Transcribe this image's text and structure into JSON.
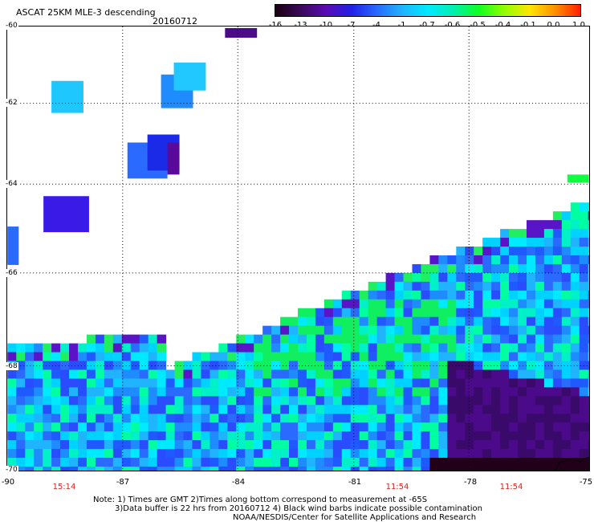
{
  "header": {
    "title": "ASCAT 25KM MLE-3 descending",
    "date": "20160712"
  },
  "colorbar": {
    "labels": [
      "-16",
      "-13",
      "-10",
      "-7",
      "-4",
      "-1",
      "-0.7",
      "-0.6",
      "-0.5",
      "-0.4",
      "-0.1",
      "0.0",
      "1.0"
    ],
    "colors": [
      "#1a0010",
      "#3a0a5a",
      "#5a0ab4",
      "#2020e6",
      "#2a6aff",
      "#20b4ff",
      "#00eaff",
      "#00f0b0",
      "#10ff20",
      "#90ff00",
      "#ffe600",
      "#ff9000",
      "#ff2000"
    ]
  },
  "axes": {
    "lat_labels": [
      "-60",
      "-62",
      "-64",
      "-66",
      "-68",
      "-70"
    ],
    "lon_labels": [
      "-90",
      "-87",
      "-84",
      "-81",
      "-78",
      "-75"
    ],
    "time_labels": [
      "15:14",
      "11:54",
      "11:54"
    ]
  },
  "notes": [
    "Note: 1) Times are GMT 2)Times along bottom correspond to measurement at -65S",
    "3)Data buffer is 22 hrs from 20160712 4) Black wind barbs indicate possible contamination",
    "NOAA/NESDIS/Center for Satellite Applications and Research"
  ]
}
